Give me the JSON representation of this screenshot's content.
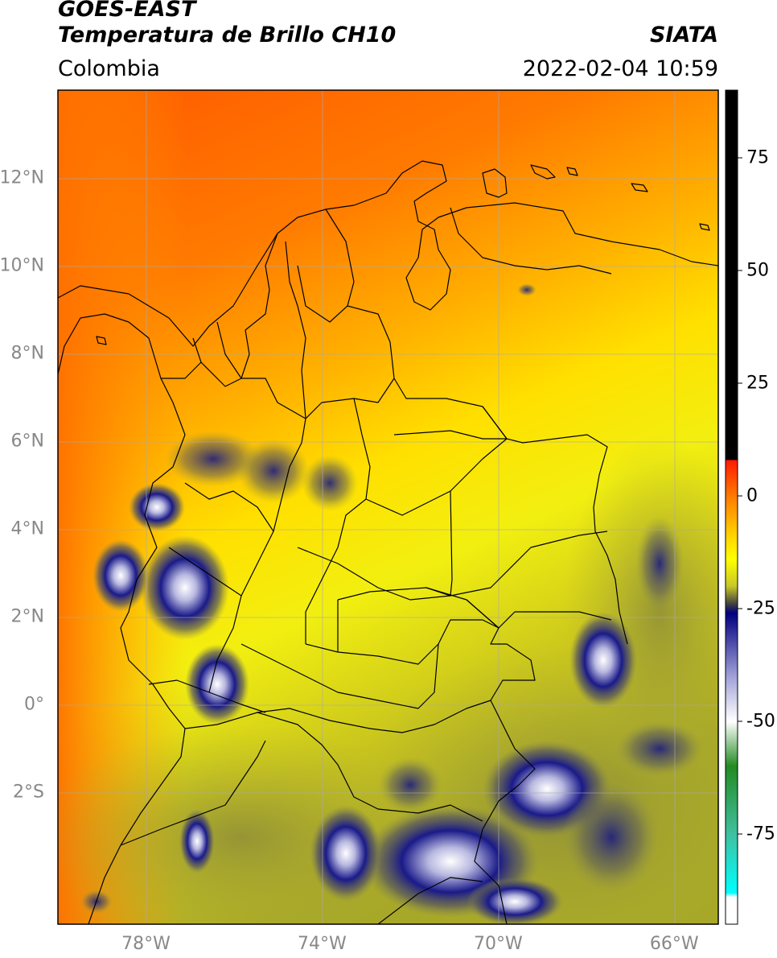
{
  "header": {
    "satellite": "GOES-EAST",
    "product": "Temperatura de Brillo CH10",
    "region": "Colombia",
    "organization": "SIATA",
    "datetime": "2022-02-04 10:59"
  },
  "map": {
    "lon_range": [
      -80,
      -65
    ],
    "lat_range": [
      -5,
      14
    ],
    "lat_ticks": [
      {
        "value": 12,
        "label": "12°N"
      },
      {
        "value": 10,
        "label": "10°N"
      },
      {
        "value": 8,
        "label": "8°N"
      },
      {
        "value": 6,
        "label": "6°N"
      },
      {
        "value": 4,
        "label": "4°N"
      },
      {
        "value": 2,
        "label": "2°N"
      },
      {
        "value": 0,
        "label": "0°"
      },
      {
        "value": -2,
        "label": "2°S"
      }
    ],
    "lon_ticks": [
      {
        "value": -78,
        "label": "78°W"
      },
      {
        "value": -74,
        "label": "74°W"
      },
      {
        "value": -70,
        "label": "70°W"
      },
      {
        "value": -66,
        "label": "66°W"
      }
    ],
    "colorbar": {
      "range": [
        -95,
        90
      ],
      "ticks": [
        {
          "value": 75,
          "label": "75"
        },
        {
          "value": 50,
          "label": "50"
        },
        {
          "value": 25,
          "label": "25"
        },
        {
          "value": 0,
          "label": "0"
        },
        {
          "value": -25,
          "label": "-25"
        },
        {
          "value": -50,
          "label": "-50"
        },
        {
          "value": -75,
          "label": "-75"
        }
      ],
      "stops": [
        {
          "value": 90,
          "color": "#000000"
        },
        {
          "value": 8,
          "color": "#000000"
        },
        {
          "value": 7.9,
          "color": "#ff1a00"
        },
        {
          "value": 0,
          "color": "#ff7a00"
        },
        {
          "value": -8,
          "color": "#ffcc00"
        },
        {
          "value": -14,
          "color": "#ffff00"
        },
        {
          "value": -20,
          "color": "#c8c828"
        },
        {
          "value": -24,
          "color": "#404040"
        },
        {
          "value": -26,
          "color": "#000080"
        },
        {
          "value": -40,
          "color": "#a0a0d8"
        },
        {
          "value": -50,
          "color": "#ffffff"
        },
        {
          "value": -60,
          "color": "#228b22"
        },
        {
          "value": -75,
          "color": "#40c0a0"
        },
        {
          "value": -88,
          "color": "#00ffff"
        },
        {
          "value": -89,
          "color": "#ffffff"
        },
        {
          "value": -95,
          "color": "#ffffff"
        }
      ]
    }
  }
}
